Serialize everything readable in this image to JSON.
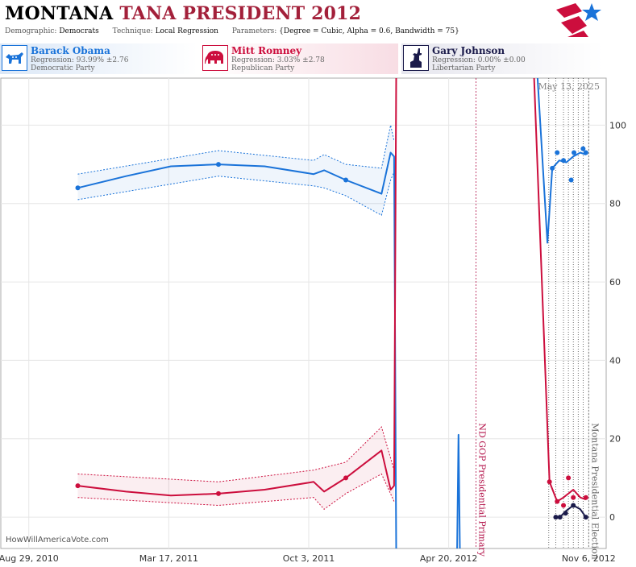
{
  "header": {
    "state": "MONTANA",
    "rest": "TANA PRESIDENT 2012",
    "demographic_label": "Demographic:",
    "demographic_value": "Democrats",
    "technique_label": "Technique:",
    "technique_value": "Local Regression",
    "parameters_label": "Parameters:",
    "parameters_value": "{Degree = Cubic, Alpha = 0.6, Bandwidth = 75}"
  },
  "candidates": [
    {
      "name": "Barack Obama",
      "regression": "Regression: 93.99% ±2.76",
      "party": "Democratic Party",
      "color": "#1a73d9",
      "icon": "donkey-icon"
    },
    {
      "name": "Mitt Romney",
      "regression": "Regression: 3.03% ±2.78",
      "party": "Republican Party",
      "color": "#cc0e3d",
      "icon": "elephant-icon"
    },
    {
      "name": "Gary Johnson",
      "regression": "Regression: 0.00% ±0.00",
      "party": "Libertarian Party",
      "color": "#1a1a4a",
      "icon": "liberty-icon"
    }
  ],
  "chart_data": {
    "type": "line",
    "x_type": "date",
    "xlim": [
      "2010-07-20",
      "2012-12-01"
    ],
    "ylim": [
      -8,
      112
    ],
    "yticks": [
      0,
      20,
      40,
      60,
      80,
      100
    ],
    "xticks": [
      {
        "date": "2010-08-29",
        "label": "Aug 29, 2010"
      },
      {
        "date": "2011-03-17",
        "label": "Mar 17, 2011"
      },
      {
        "date": "2011-10-03",
        "label": "Oct 3, 2011"
      },
      {
        "date": "2012-04-20",
        "label": "Apr 20, 2012"
      },
      {
        "date": "2012-11-06",
        "label": "Nov 6, 2012"
      }
    ],
    "grid": true,
    "date_label": "May 13, 2025",
    "credit": "HowWillAmericaVote.com",
    "events": [
      {
        "date": "2012-05-29",
        "label": "ND GOP Presidential Primary",
        "color": "#b3134a"
      },
      {
        "date": "2012-11-06",
        "label": "Montana Presidential Election",
        "color": "#666666"
      }
    ],
    "poll_dates": [
      "2012-09-10",
      "2012-09-20",
      "2012-10-01",
      "2012-10-08",
      "2012-10-15",
      "2012-10-22",
      "2012-10-29"
    ],
    "series": [
      {
        "name": "Barack Obama",
        "color": "#1a73d9",
        "points": [
          {
            "x": "2010-11-07",
            "y": 84
          },
          {
            "x": "2011-05-27",
            "y": 90
          },
          {
            "x": "2011-11-25",
            "y": 86
          },
          {
            "x": "2012-09-15",
            "y": 89
          },
          {
            "x": "2012-09-22",
            "y": 93
          },
          {
            "x": "2012-10-01",
            "y": 91
          },
          {
            "x": "2012-10-12",
            "y": 86
          },
          {
            "x": "2012-10-16",
            "y": 93
          },
          {
            "x": "2012-10-29",
            "y": 94
          },
          {
            "x": "2012-11-02",
            "y": 93
          }
        ],
        "line": [
          {
            "x": "2010-11-07",
            "y": 84
          },
          {
            "x": "2011-01-15",
            "y": 87
          },
          {
            "x": "2011-03-20",
            "y": 89.5
          },
          {
            "x": "2011-05-27",
            "y": 90
          },
          {
            "x": "2011-08-01",
            "y": 89.5
          },
          {
            "x": "2011-10-10",
            "y": 87.5
          },
          {
            "x": "2011-10-25",
            "y": 88.5
          },
          {
            "x": "2011-11-25",
            "y": 86
          },
          {
            "x": "2012-01-15",
            "y": 82.5
          },
          {
            "x": "2012-01-28",
            "y": 93
          },
          {
            "x": "2012-02-02",
            "y": 92
          },
          {
            "x": "2012-02-05",
            "y": -8
          }
        ],
        "line2": [
          {
            "x": "2012-08-25",
            "y": 112
          },
          {
            "x": "2012-09-08",
            "y": 70
          },
          {
            "x": "2012-09-15",
            "y": 89
          },
          {
            "x": "2012-09-25",
            "y": 91
          },
          {
            "x": "2012-10-05",
            "y": 90.5
          },
          {
            "x": "2012-10-15",
            "y": 92
          },
          {
            "x": "2012-10-25",
            "y": 93
          },
          {
            "x": "2012-11-02",
            "y": 92.5
          }
        ],
        "spike": [
          {
            "x": "2012-05-02",
            "y": -8
          },
          {
            "x": "2012-05-04",
            "y": 21
          },
          {
            "x": "2012-05-06",
            "y": -8
          }
        ],
        "band_upper": [
          {
            "x": "2010-11-07",
            "y": 87.5
          },
          {
            "x": "2011-05-27",
            "y": 93.5
          },
          {
            "x": "2011-10-10",
            "y": 91
          },
          {
            "x": "2011-10-25",
            "y": 92.5
          },
          {
            "x": "2011-11-25",
            "y": 90
          },
          {
            "x": "2012-01-15",
            "y": 89
          },
          {
            "x": "2012-01-28",
            "y": 100
          },
          {
            "x": "2012-02-02",
            "y": 96
          }
        ],
        "band_lower": [
          {
            "x": "2010-11-07",
            "y": 81
          },
          {
            "x": "2011-05-27",
            "y": 87
          },
          {
            "x": "2011-10-10",
            "y": 84.5
          },
          {
            "x": "2011-10-25",
            "y": 84
          },
          {
            "x": "2011-11-25",
            "y": 82
          },
          {
            "x": "2012-01-15",
            "y": 77
          },
          {
            "x": "2012-01-28",
            "y": 86
          },
          {
            "x": "2012-02-02",
            "y": 88
          }
        ]
      },
      {
        "name": "Mitt Romney",
        "color": "#cc0e3d",
        "points": [
          {
            "x": "2010-11-07",
            "y": 8
          },
          {
            "x": "2011-05-27",
            "y": 6
          },
          {
            "x": "2011-11-25",
            "y": 10
          },
          {
            "x": "2012-09-11",
            "y": 9
          },
          {
            "x": "2012-09-22",
            "y": 4
          },
          {
            "x": "2012-10-01",
            "y": 3
          },
          {
            "x": "2012-10-08",
            "y": 10
          },
          {
            "x": "2012-10-15",
            "y": 5
          },
          {
            "x": "2012-11-02",
            "y": 5
          }
        ],
        "line": [
          {
            "x": "2010-11-07",
            "y": 8
          },
          {
            "x": "2011-01-15",
            "y": 6.5
          },
          {
            "x": "2011-03-20",
            "y": 5.5
          },
          {
            "x": "2011-05-27",
            "y": 6
          },
          {
            "x": "2011-08-01",
            "y": 7
          },
          {
            "x": "2011-10-10",
            "y": 9
          },
          {
            "x": "2011-10-25",
            "y": 6.5
          },
          {
            "x": "2011-11-25",
            "y": 10
          },
          {
            "x": "2012-01-15",
            "y": 17
          },
          {
            "x": "2012-01-28",
            "y": 7
          },
          {
            "x": "2012-02-02",
            "y": 8
          },
          {
            "x": "2012-02-05",
            "y": 112
          }
        ],
        "line2": [
          {
            "x": "2012-08-20",
            "y": 112
          },
          {
            "x": "2012-09-11",
            "y": 9
          },
          {
            "x": "2012-09-22",
            "y": 4
          },
          {
            "x": "2012-10-01",
            "y": 5
          },
          {
            "x": "2012-10-15",
            "y": 7
          },
          {
            "x": "2012-10-25",
            "y": 5
          },
          {
            "x": "2012-11-02",
            "y": 4.5
          }
        ],
        "band_upper": [
          {
            "x": "2010-11-07",
            "y": 11
          },
          {
            "x": "2011-05-27",
            "y": 9
          },
          {
            "x": "2011-10-10",
            "y": 12
          },
          {
            "x": "2011-11-25",
            "y": 14
          },
          {
            "x": "2012-01-15",
            "y": 23
          },
          {
            "x": "2012-02-02",
            "y": 12
          }
        ],
        "band_lower": [
          {
            "x": "2010-11-07",
            "y": 5
          },
          {
            "x": "2011-05-27",
            "y": 3
          },
          {
            "x": "2011-10-10",
            "y": 5
          },
          {
            "x": "2011-10-25",
            "y": 2
          },
          {
            "x": "2011-11-25",
            "y": 6
          },
          {
            "x": "2012-01-15",
            "y": 11
          },
          {
            "x": "2012-02-02",
            "y": 4
          }
        ]
      },
      {
        "name": "Gary Johnson",
        "color": "#1a1a4a",
        "points": [
          {
            "x": "2012-09-20",
            "y": 0
          },
          {
            "x": "2012-09-26",
            "y": 0
          },
          {
            "x": "2012-10-04",
            "y": 1
          },
          {
            "x": "2012-10-15",
            "y": 3
          },
          {
            "x": "2012-11-02",
            "y": 0
          }
        ],
        "line": [
          {
            "x": "2012-09-20",
            "y": 0
          },
          {
            "x": "2012-09-26",
            "y": 0
          },
          {
            "x": "2012-10-04",
            "y": 1.5
          },
          {
            "x": "2012-10-15",
            "y": 3
          },
          {
            "x": "2012-10-25",
            "y": 2
          },
          {
            "x": "2012-11-02",
            "y": 0
          }
        ]
      }
    ]
  }
}
